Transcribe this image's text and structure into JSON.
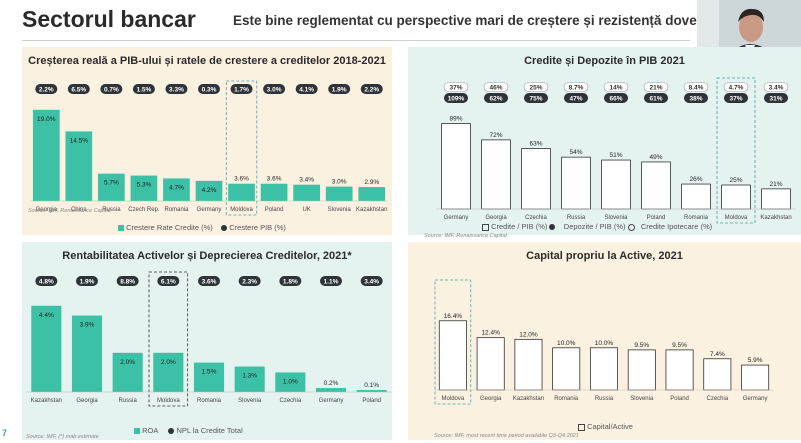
{
  "header": {
    "title": "Sectorul bancar",
    "subtitle": "Este bine reglementat cu perspective mari de creștere și rezistență dovedi",
    "page_number": "7"
  },
  "colors": {
    "teal": "#3cc0a6",
    "cream": "#fbf1e0",
    "mint": "#e5f3f0",
    "dark_pill": "#2d3338",
    "moldova_dash": "#3aa7a7"
  },
  "chart_data": [
    {
      "id": "gdp_credit",
      "type": "bar",
      "title": "Creșterea reală a PIB-ului și ratele de crestere a creditelor  2018-2021",
      "categories": [
        "Georgia",
        "China",
        "Russia",
        "Czech Rep.",
        "Romania",
        "Germany",
        "Moldova",
        "Poland",
        "UK",
        "Slovenia",
        "Kazakhstan"
      ],
      "value_labels": [
        "19.0%",
        "14.5%",
        "5.7%",
        "5.3%",
        "4.7%",
        "4.2%",
        "3.6%",
        "3.6%",
        "3.4%",
        "3.0%",
        "2.9%"
      ],
      "values": [
        19.0,
        14.5,
        5.7,
        5.3,
        4.7,
        4.2,
        3.6,
        3.6,
        3.4,
        3.0,
        2.9
      ],
      "pill_labels": [
        "2.2%",
        "6.5%",
        "0.7%",
        "1.5%",
        "3.3%",
        "0.3%",
        "1.7%",
        "3.0%",
        "4.1%",
        "1.9%",
        "2.2%"
      ],
      "legend": [
        "Crestere Rate Credite (%)",
        "Crestere PIB (%)"
      ],
      "source": "Source: IMF, Renaissance Capital",
      "ylim": [
        0,
        20
      ]
    },
    {
      "id": "credit_deposit",
      "type": "bar",
      "title": "Credite și Depozite în PIB 2021",
      "categories": [
        "Germany",
        "Georgia",
        "Czechia",
        "Russia",
        "Slovenia",
        "Poland",
        "Romania",
        "Moldova",
        "Kazakhstan"
      ],
      "value_labels": [
        "89%",
        "72%",
        "63%",
        "54%",
        "51%",
        "49%",
        "26%",
        "25%",
        "21%"
      ],
      "values": [
        89,
        72,
        63,
        54,
        51,
        49,
        26,
        25,
        21
      ],
      "top_pill_labels": [
        "37%",
        "46%",
        "25%",
        "8.7%",
        "14%",
        "21%",
        "8.4%",
        "4.7%",
        "3.4%"
      ],
      "mid_pill_labels": [
        "109%",
        "62%",
        "75%",
        "47%",
        "66%",
        "61%",
        "38%",
        "37%",
        "31%"
      ],
      "legend": [
        "Credite / PIB (%)",
        "Depozite / PIB (%)",
        "Credite Ipotecare (%)"
      ],
      "source": "Source: IMF, Renaissance Capital",
      "ylim": [
        0,
        100
      ]
    },
    {
      "id": "roa_npl",
      "type": "bar",
      "title": "Rentabilitatea Activelor și Deprecierea Creditelor, 2021*",
      "categories": [
        "Kazakhstan",
        "Georgia",
        "Russia",
        "Moldova",
        "Romania",
        "Slovenia",
        "Czechia",
        "Germany",
        "Poland"
      ],
      "value_labels": [
        "4.4%",
        "3.9%",
        "2.0%",
        "2.0%",
        "1.5%",
        "1.3%",
        "1.0%",
        "0.2%",
        "0.1%"
      ],
      "values": [
        4.4,
        3.9,
        2.0,
        2.0,
        1.5,
        1.3,
        1.0,
        0.2,
        0.1
      ],
      "pill_labels": [
        "4.8%",
        "1.9%",
        "8.8%",
        "6.1%",
        "3.6%",
        "2.3%",
        "1.8%",
        "1.1%",
        "3.4%"
      ],
      "legend": [
        "ROA",
        "NPL la Credite Total"
      ],
      "source": "Source: IMF, (*) mab estimate",
      "ylim": [
        0,
        5
      ]
    },
    {
      "id": "capital_assets",
      "type": "bar",
      "title": "Capital propriu la Active, 2021",
      "categories": [
        "Moldova",
        "Georgia",
        "Kazakhstan",
        "Romania",
        "Russia",
        "Slovenia",
        "Poland",
        "Czechia",
        "Germany"
      ],
      "value_labels": [
        "16.4%",
        "12.4%",
        "12.0%",
        "10.0%",
        "10.0%",
        "9.5%",
        "9.5%",
        "7.4%",
        "5.9%"
      ],
      "values": [
        16.4,
        12.4,
        12.0,
        10.0,
        10.0,
        9.5,
        9.5,
        7.4,
        5.9
      ],
      "legend": [
        "Capital/Active"
      ],
      "source": "Source: IMF, most recent time period available Q3-Q4 2021",
      "ylim": [
        0,
        18
      ]
    }
  ]
}
